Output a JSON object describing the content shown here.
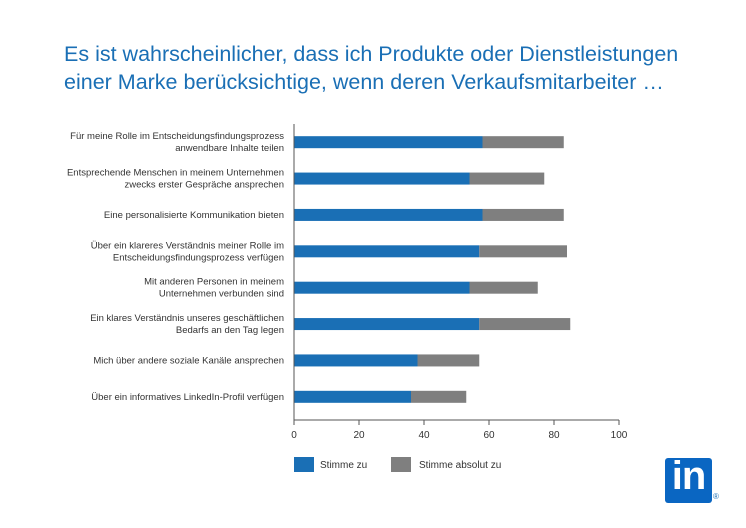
{
  "title_line1": "Es ist wahrscheinlicher, dass ich Produkte oder Dienstleistungen",
  "title_line2": "einer Marke berücksichtige, wenn deren Verkaufsmitarbeiter …",
  "logo_text": "in",
  "logo_registered": "®",
  "colors": {
    "title": "#1a6fb5",
    "stimme_zu": "#1a6fb5",
    "stimme_absolut_zu": "#7f7f7f",
    "logo": "#0a66c2"
  },
  "chart_data": {
    "type": "bar",
    "orientation": "horizontal",
    "stacked": true,
    "categories": [
      [
        "Für meine Rolle im Entscheidungsfindungsprozess",
        "anwendbare Inhalte teilen"
      ],
      [
        "Entsprechende Menschen in meinem Unternehmen",
        "zwecks erster Gespräche ansprechen"
      ],
      [
        "Eine personalisierte Kommunikation bieten"
      ],
      [
        "Über ein klareres Verständnis meiner Rolle im",
        "Entscheidungsfindungsprozess verfügen"
      ],
      [
        "Mit anderen Personen in meinem",
        "Unternehmen verbunden sind"
      ],
      [
        "Ein klares Verständnis unseres geschäftlichen",
        "Bedarfs an den Tag legen"
      ],
      [
        "Mich über andere soziale Kanäle ansprechen"
      ],
      [
        "Über ein informatives LinkedIn-Profil verfügen"
      ]
    ],
    "series": [
      {
        "name": "Stimme zu",
        "values": [
          58,
          54,
          58,
          57,
          54,
          57,
          38,
          36
        ]
      },
      {
        "name": "Stimme absolut zu",
        "values": [
          25,
          23,
          25,
          27,
          21,
          28,
          19,
          17
        ]
      }
    ],
    "xlim": [
      0,
      100
    ],
    "xticks": [
      0,
      20,
      40,
      60,
      80,
      100
    ],
    "legend_position": "bottom",
    "grid": false
  }
}
